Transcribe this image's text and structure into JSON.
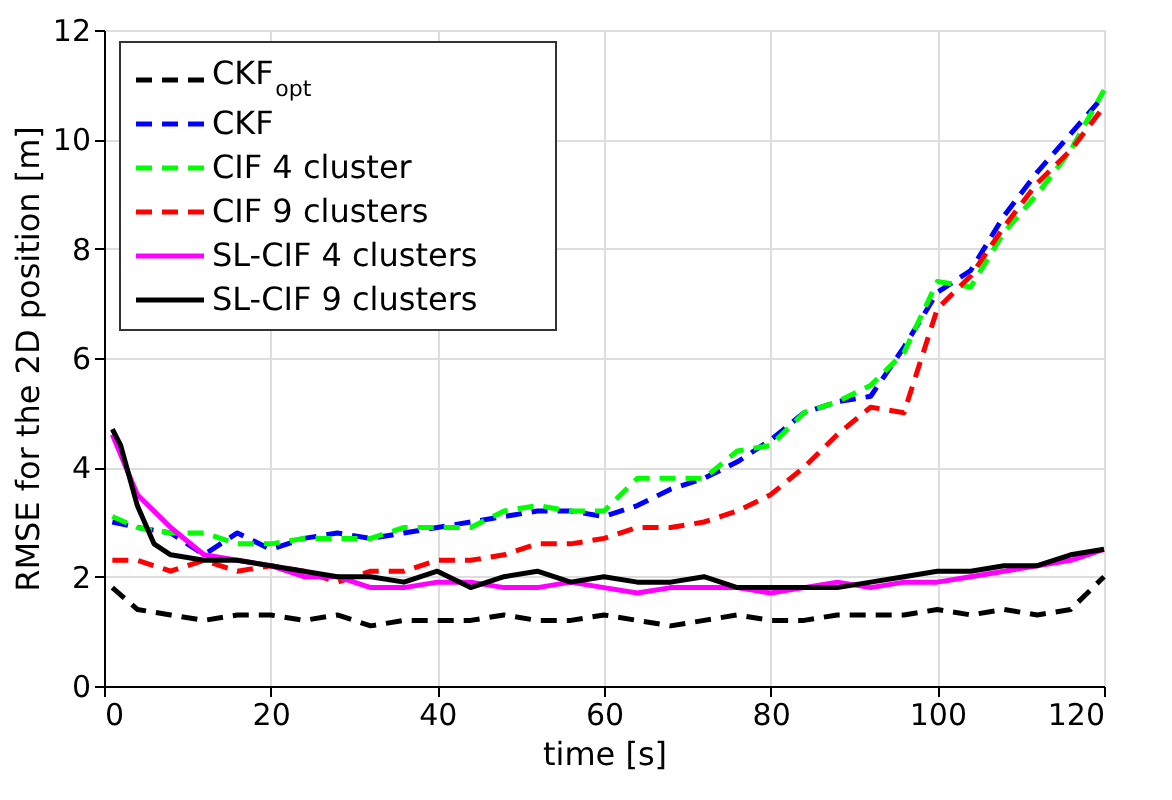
{
  "chart_data": {
    "type": "line",
    "xlabel": "time [s]",
    "ylabel": "RMSE for the 2D position [m]",
    "xlim": [
      0,
      120
    ],
    "xticks": [
      0,
      20,
      40,
      60,
      80,
      100,
      120
    ],
    "ylim": [
      0,
      12
    ],
    "yticks": [
      0,
      2,
      4,
      6,
      8,
      10,
      12
    ],
    "grid": true,
    "legend": "top left",
    "series": [
      {
        "name": "CKF$_{opt}$",
        "color": "#000000",
        "line_style": "dashed",
        "x": [
          1,
          4,
          8,
          12,
          16,
          20,
          24,
          28,
          32,
          36,
          40,
          44,
          48,
          52,
          56,
          60,
          64,
          68,
          72,
          76,
          80,
          84,
          88,
          92,
          96,
          100,
          104,
          108,
          112,
          116,
          120
        ],
        "values": [
          1.8,
          1.4,
          1.3,
          1.2,
          1.3,
          1.3,
          1.2,
          1.3,
          1.1,
          1.2,
          1.2,
          1.2,
          1.3,
          1.2,
          1.2,
          1.3,
          1.2,
          1.1,
          1.2,
          1.3,
          1.2,
          1.2,
          1.3,
          1.3,
          1.3,
          1.4,
          1.3,
          1.4,
          1.3,
          1.4,
          2.0
        ]
      },
      {
        "name": "CKF",
        "color": "#0000ff",
        "line_style": "dashed",
        "x": [
          1,
          4,
          8,
          12,
          16,
          20,
          24,
          28,
          32,
          36,
          40,
          44,
          48,
          52,
          56,
          60,
          64,
          68,
          72,
          76,
          80,
          84,
          88,
          92,
          96,
          100,
          104,
          108,
          112,
          116,
          120
        ],
        "values": [
          3.0,
          2.9,
          2.8,
          2.4,
          2.8,
          2.5,
          2.7,
          2.8,
          2.7,
          2.8,
          2.9,
          3.0,
          3.1,
          3.2,
          3.2,
          3.1,
          3.3,
          3.6,
          3.8,
          4.1,
          4.5,
          5.0,
          5.2,
          5.3,
          6.2,
          7.2,
          7.6,
          8.6,
          9.4,
          10.1,
          10.8
        ]
      },
      {
        "name": "CIF 4 cluster",
        "color": "#00ff00",
        "line_style": "dashed",
        "x": [
          1,
          4,
          8,
          12,
          16,
          20,
          24,
          28,
          32,
          36,
          40,
          44,
          48,
          52,
          56,
          60,
          64,
          68,
          72,
          76,
          80,
          84,
          88,
          92,
          96,
          100,
          104,
          108,
          112,
          116,
          120
        ],
        "values": [
          3.1,
          2.9,
          2.8,
          2.8,
          2.6,
          2.6,
          2.7,
          2.7,
          2.7,
          2.9,
          2.9,
          2.9,
          3.2,
          3.3,
          3.2,
          3.2,
          3.8,
          3.8,
          3.8,
          4.3,
          4.4,
          5.0,
          5.2,
          5.5,
          6.1,
          7.4,
          7.3,
          8.3,
          9.0,
          9.8,
          10.9
        ]
      },
      {
        "name": "CIF 9 clusters",
        "color": "#ff0000",
        "line_style": "dashed",
        "x": [
          1,
          4,
          8,
          12,
          16,
          20,
          24,
          28,
          32,
          36,
          40,
          44,
          48,
          52,
          56,
          60,
          64,
          68,
          72,
          76,
          80,
          84,
          88,
          92,
          96,
          100,
          104,
          108,
          112,
          116,
          120
        ],
        "values": [
          2.3,
          2.3,
          2.1,
          2.3,
          2.1,
          2.2,
          2.1,
          1.9,
          2.1,
          2.1,
          2.3,
          2.3,
          2.4,
          2.6,
          2.6,
          2.7,
          2.9,
          2.9,
          3.0,
          3.2,
          3.5,
          4.0,
          4.6,
          5.1,
          5.0,
          6.9,
          7.5,
          8.4,
          9.2,
          9.8,
          10.6
        ]
      },
      {
        "name": "SL-CIF 4 clusters",
        "color": "#ff00ff",
        "line_style": "solid",
        "x": [
          1,
          4,
          8,
          12,
          16,
          20,
          24,
          28,
          32,
          36,
          40,
          44,
          48,
          52,
          56,
          60,
          64,
          68,
          72,
          76,
          80,
          84,
          88,
          92,
          96,
          100,
          104,
          108,
          112,
          116,
          120
        ],
        "values": [
          4.6,
          3.5,
          2.9,
          2.4,
          2.3,
          2.2,
          2.0,
          2.0,
          1.8,
          1.8,
          1.9,
          1.9,
          1.8,
          1.8,
          1.9,
          1.8,
          1.7,
          1.8,
          1.8,
          1.8,
          1.7,
          1.8,
          1.9,
          1.8,
          1.9,
          1.9,
          2.0,
          2.1,
          2.2,
          2.3,
          2.5
        ]
      },
      {
        "name": "SL-CIF 9 clusters",
        "color": "#000000",
        "line_style": "solid",
        "x": [
          1,
          2,
          4,
          6,
          8,
          12,
          16,
          20,
          24,
          28,
          32,
          36,
          40,
          44,
          48,
          52,
          56,
          60,
          64,
          68,
          72,
          76,
          80,
          84,
          88,
          92,
          96,
          100,
          104,
          108,
          112,
          116,
          120
        ],
        "values": [
          4.7,
          4.4,
          3.3,
          2.6,
          2.4,
          2.3,
          2.3,
          2.2,
          2.1,
          2.0,
          2.0,
          1.9,
          2.1,
          1.8,
          2.0,
          2.1,
          1.9,
          2.0,
          1.9,
          1.9,
          2.0,
          1.8,
          1.8,
          1.8,
          1.8,
          1.9,
          2.0,
          2.1,
          2.1,
          2.2,
          2.2,
          2.4,
          2.5
        ]
      }
    ]
  }
}
